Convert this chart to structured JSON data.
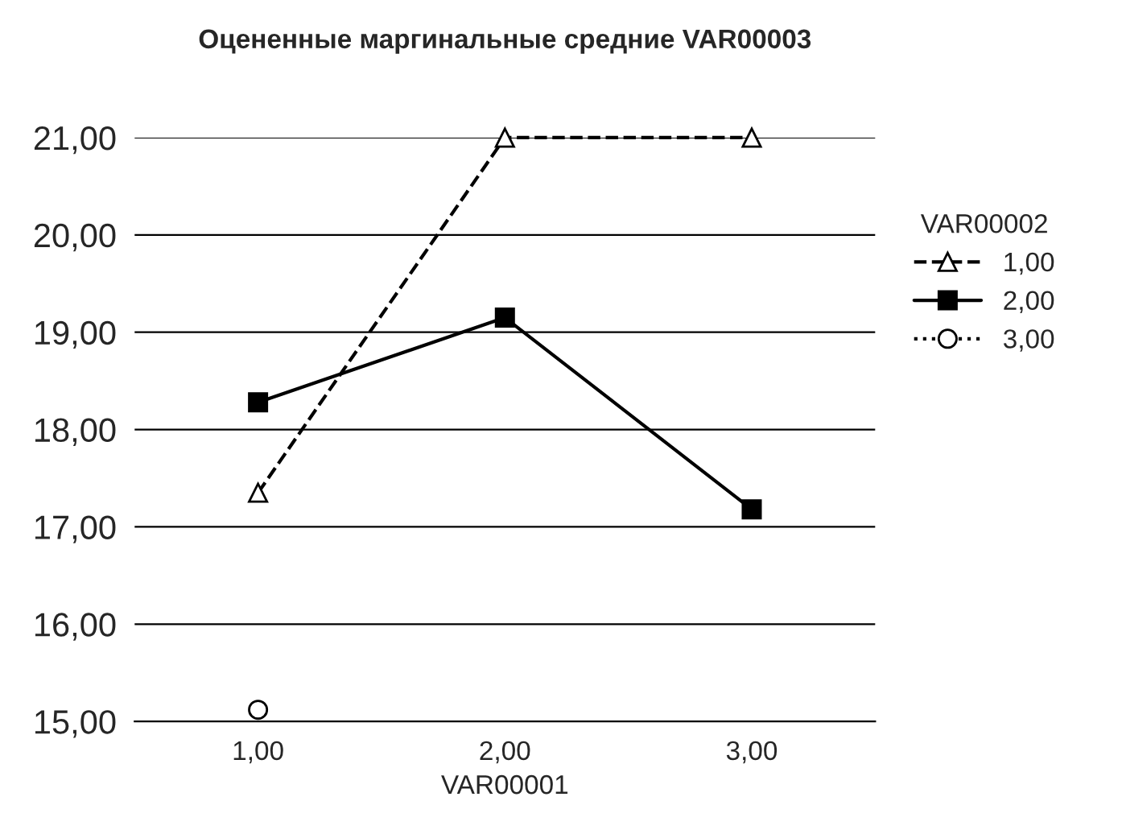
{
  "chart_data": {
    "type": "line",
    "title": "Оцененные маргинальные средние VAR00003",
    "xlabel": "VAR00001",
    "legend_title": "VAR00002",
    "categories": [
      "1,00",
      "2,00",
      "3,00"
    ],
    "series": [
      {
        "name": "1,00",
        "color": "#000000",
        "marker": "triangle",
        "line_style": "dashed",
        "values": [
          17.35,
          21.0,
          21.0
        ]
      },
      {
        "name": "2,00",
        "color": "#000000",
        "marker": "square",
        "line_style": "solid",
        "values": [
          18.28,
          19.15,
          17.18
        ]
      },
      {
        "name": "3,00",
        "color": "#000000",
        "marker": "circle",
        "line_style": "dotted",
        "values": [
          15.12,
          null,
          null
        ]
      }
    ],
    "ylim": [
      15,
      21
    ],
    "yticks": [
      {
        "value": 15,
        "label": "15,00"
      },
      {
        "value": 16,
        "label": "16,00"
      },
      {
        "value": 17,
        "label": "17,00"
      },
      {
        "value": 18,
        "label": "18,00"
      },
      {
        "value": 19,
        "label": "19,00"
      },
      {
        "value": 20,
        "label": "20,00"
      },
      {
        "value": 21,
        "label": "21,00"
      }
    ],
    "grid": "y",
    "legend": "right"
  }
}
